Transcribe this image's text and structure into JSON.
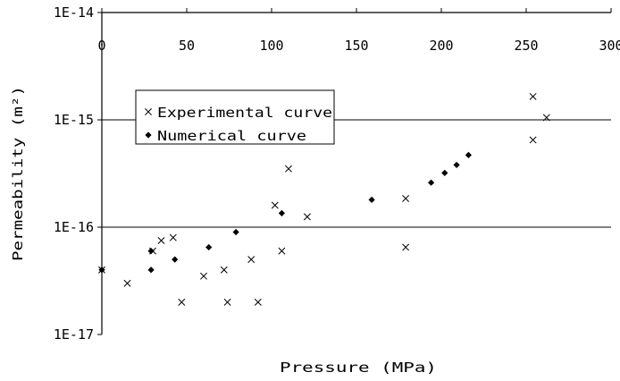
{
  "chart_data": {
    "type": "scatter",
    "title": "",
    "xlabel": "Pressure (MPa)",
    "ylabel": "Permeability (m²)",
    "xlim": [
      0,
      300
    ],
    "ylim": [
      1e-17,
      1e-14
    ],
    "y_scale": "log",
    "x_ticks": [
      0,
      50,
      100,
      150,
      200,
      250,
      300
    ],
    "x_tick_labels": [
      "0",
      "50",
      "100",
      "150",
      "200",
      "250",
      "300"
    ],
    "y_ticks": [
      1e-14,
      1e-15,
      1e-16,
      1e-17
    ],
    "y_tick_labels": [
      "1E-14",
      "1E-15",
      "1E-16",
      "1E-17"
    ],
    "grid": "horizontal major lines at 1E-15 and 1E-16",
    "legend_position": "upper-left",
    "series": [
      {
        "name": "Experimental curve",
        "marker": "x",
        "points": [
          [
            0,
            4e-17
          ],
          [
            15,
            3e-17
          ],
          [
            30,
            6e-17
          ],
          [
            35,
            7.5e-17
          ],
          [
            42,
            8e-17
          ],
          [
            47,
            2e-17
          ],
          [
            60,
            3.5e-17
          ],
          [
            72,
            4e-17
          ],
          [
            74,
            2e-17
          ],
          [
            88,
            5e-17
          ],
          [
            92,
            2e-17
          ],
          [
            102,
            1.6e-16
          ],
          [
            106,
            6e-17
          ],
          [
            110,
            3.5e-16
          ],
          [
            121,
            1.25e-16
          ],
          [
            179,
            1.85e-16
          ],
          [
            179,
            6.5e-17
          ],
          [
            254,
            1.65e-15
          ],
          [
            254,
            6.5e-16
          ],
          [
            262,
            1.05e-15
          ]
        ]
      },
      {
        "name": "Numerical curve",
        "marker": "diamond",
        "points": [
          [
            0,
            4e-17
          ],
          [
            29,
            4e-17
          ],
          [
            29,
            6e-17
          ],
          [
            43,
            5e-17
          ],
          [
            63,
            6.5e-17
          ],
          [
            79,
            9e-17
          ],
          [
            106,
            1.35e-16
          ],
          [
            159,
            1.8e-16
          ],
          [
            194,
            2.6e-16
          ],
          [
            202,
            3.2e-16
          ],
          [
            209,
            3.8e-16
          ],
          [
            216,
            4.7e-16
          ]
        ]
      }
    ]
  }
}
